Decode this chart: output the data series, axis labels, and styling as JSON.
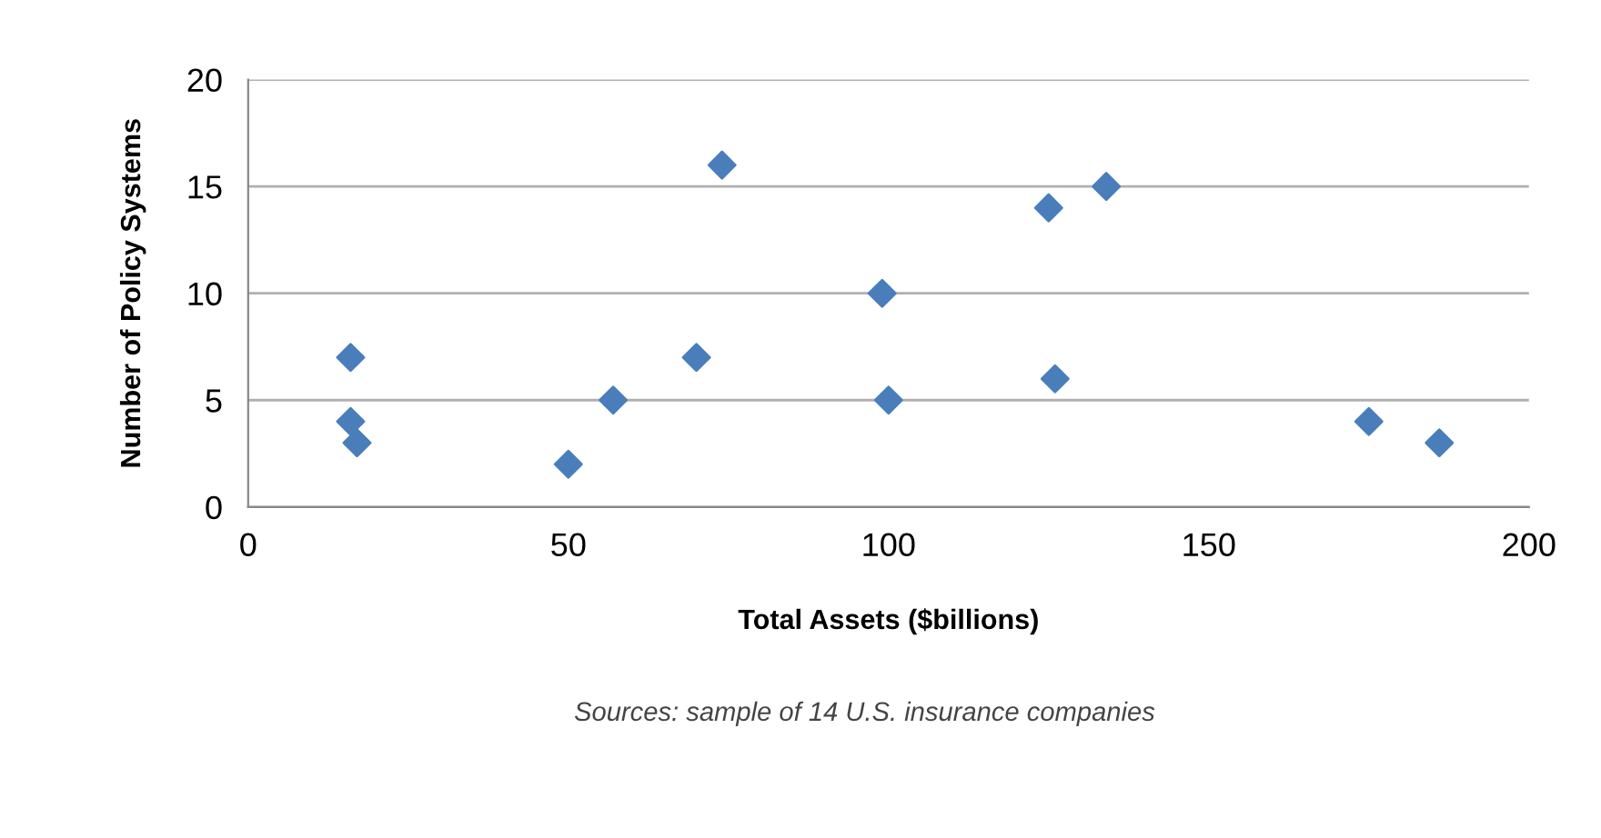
{
  "chart_data": {
    "type": "scatter",
    "xlabel": "Total Assets ($billions)",
    "ylabel": "Number of Policy Systems",
    "annotations": [
      "Sources: sample of 14 U.S. insurance companies"
    ],
    "series": [
      {
        "color": "#4a7ebb",
        "x": [
          16,
          16,
          17,
          50,
          57,
          70,
          74,
          99,
          100,
          125,
          126,
          134,
          175,
          186
        ],
        "values": [
          7,
          4,
          3,
          2,
          5,
          7,
          16,
          10,
          5,
          14,
          6,
          15,
          4,
          3
        ]
      }
    ],
    "xlim": [
      0,
      200
    ],
    "xticks": [
      0,
      50,
      100,
      150,
      200
    ],
    "ylim": [
      0,
      20
    ],
    "yticks": [
      0,
      5,
      10,
      15,
      20
    ],
    "grid": "y",
    "marker": "diamond"
  }
}
